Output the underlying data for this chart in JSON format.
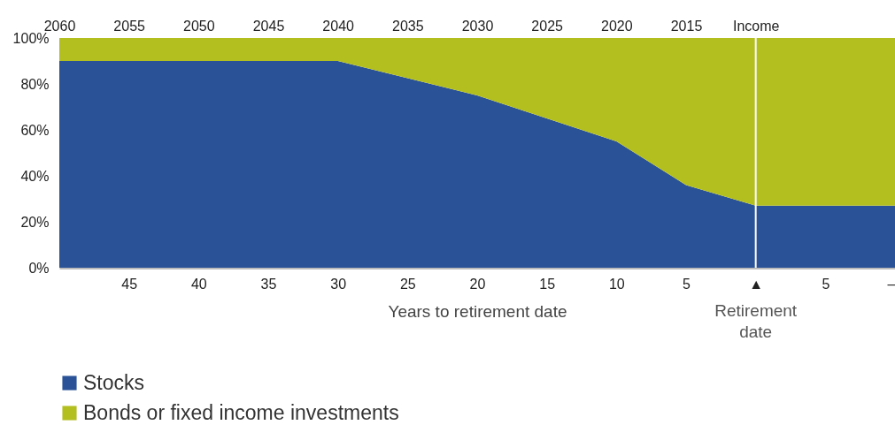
{
  "chart_data": {
    "type": "area",
    "stacked": true,
    "xlabel": "Years to retirement date",
    "x": [
      50,
      30,
      20,
      10,
      5,
      0,
      -10
    ],
    "series": [
      {
        "name": "Stocks",
        "color": "#2a5297",
        "values": [
          90,
          90,
          75,
          55,
          36,
          27,
          27
        ]
      },
      {
        "name": "Bonds or fixed income investments",
        "color": "#b3be1f",
        "values": [
          10,
          10,
          25,
          45,
          64,
          73,
          73
        ]
      }
    ],
    "xlim": [
      50,
      -10
    ],
    "xticks": [
      45,
      40,
      35,
      30,
      25,
      20,
      15,
      10,
      5,
      {
        "value": 0,
        "label": "▲"
      },
      {
        "value": -5,
        "label": "5"
      },
      {
        "value": -10,
        "label": "–"
      }
    ],
    "x2lim": [
      2060,
      2000
    ],
    "x2ticks": [
      2060,
      2055,
      2050,
      2045,
      2040,
      2035,
      2030,
      2025,
      2020,
      2015,
      {
        "value": 2010,
        "label": "Income"
      }
    ],
    "ylim": [
      0,
      100
    ],
    "yticks": [
      {
        "value": 0,
        "label": "0%"
      },
      {
        "value": 20,
        "label": "20%"
      },
      {
        "value": 40,
        "label": "40%"
      },
      {
        "value": 60,
        "label": "60%"
      },
      {
        "value": 80,
        "label": "80%"
      },
      {
        "value": 100,
        "label": "100%"
      }
    ],
    "ref_lines": [
      {
        "axis": "x",
        "value": 0,
        "color": "#ffffff"
      }
    ],
    "annotations": [
      "Retirement date"
    ],
    "grid": false,
    "legend": "bottom"
  }
}
